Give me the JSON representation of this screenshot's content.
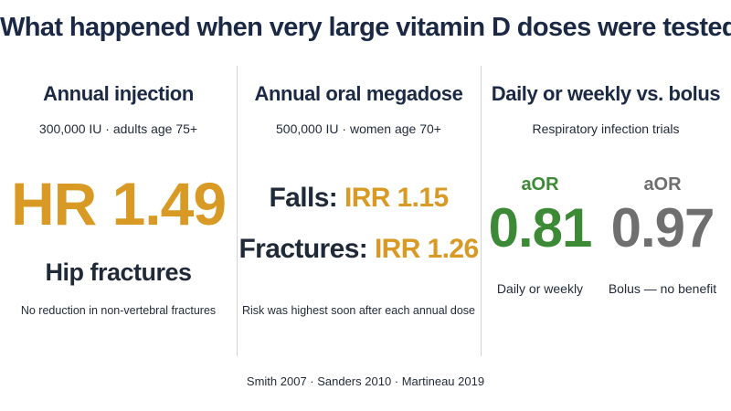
{
  "title": "What happened when very large vitamin D doses were tested",
  "columns": {
    "injection": {
      "heading": "Annual injection",
      "subtitle": "300,000 IU · adults age 75+",
      "stat": "HR 1.49",
      "outcome": "Hip fractures",
      "note": "No reduction in non-vertebral fractures"
    },
    "oral": {
      "heading": "Annual oral megadose",
      "subtitle": "500,000 IU · women age 70+",
      "falls_label": "Falls:",
      "falls_value": "IRR 1.15",
      "fractures_label": "Fractures:",
      "fractures_value": "IRR 1.26",
      "note": "Risk was highest soon after each annual dose"
    },
    "dosing": {
      "heading": "Daily or weekly vs. bolus",
      "subtitle": "Respiratory infection trials",
      "daily": {
        "metric": "aOR",
        "value": "0.81",
        "caption": "Daily or weekly"
      },
      "bolus": {
        "metric": "aOR",
        "value": "0.97",
        "caption": "Bolus — no benefit"
      }
    }
  },
  "footer": "Smith 2007 · Sanders 2010 · Martineau 2019",
  "colors": {
    "title": "#1b2945",
    "gold": "#d99a25",
    "green": "#3c8a35",
    "gray": "#6f6f6f",
    "divider": "#d4d4d4"
  }
}
